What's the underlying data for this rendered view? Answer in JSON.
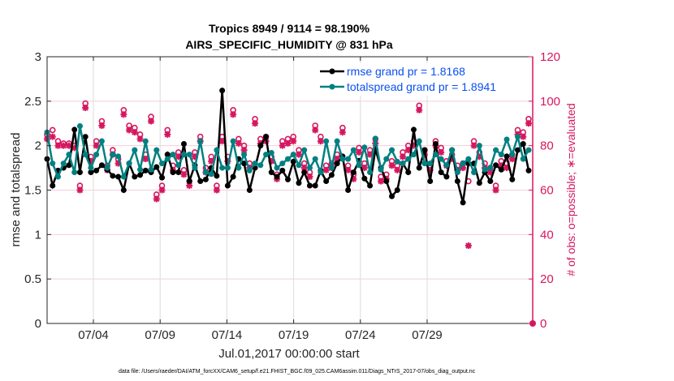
{
  "chart_data": {
    "type": "line",
    "title": "Tropics 8949 / 9114 = 98.190%",
    "subtitle": "AIRS_SPECIFIC_HUMIDITY @ 831 hPa",
    "xlabel": "Jul.01,2017 00:00:00 start",
    "ylabel": "rmse and totalspread",
    "y2label": "# of obs: o=possible; ∗=evaluated",
    "footnote": "data file: /Users/raeder/DAI/ATM_forcXX/CAM6_setup/f.e21.FHIST_BGC.f09_025.CAM6assim.011/Diags_NTrS_2017-07/obs_diag_output.nc",
    "x_ticks": [
      "07/04",
      "07/09",
      "07/14",
      "07/19",
      "07/24",
      "07/29"
    ],
    "ylim": [
      0,
      3
    ],
    "y_ticks": [
      "0",
      "0.5",
      "1",
      "1.5",
      "2",
      "2.5",
      "3"
    ],
    "y2lim": [
      0,
      120
    ],
    "y2_ticks": [
      "0",
      "20",
      "40",
      "60",
      "80",
      "100",
      "120"
    ],
    "grid": true,
    "legend_position": "top-right",
    "colors": {
      "rmse": "#000000",
      "totalspread": "#008080",
      "obs": "#d6175f",
      "legend_text": "#0a50f0"
    },
    "series": [
      {
        "name": "rmse grand pr = 1.8168",
        "axis": "left",
        "values": [
          1.85,
          1.55,
          1.72,
          1.75,
          1.78,
          2.18,
          1.7,
          2.1,
          1.7,
          1.72,
          1.78,
          1.73,
          1.66,
          1.65,
          1.5,
          1.8,
          1.65,
          1.67,
          1.72,
          1.7,
          1.76,
          1.64,
          1.9,
          1.7,
          1.7,
          2.02,
          1.6,
          1.78,
          1.6,
          1.62,
          1.75,
          1.66,
          2.62,
          1.55,
          1.65,
          1.85,
          1.8,
          1.5,
          1.75,
          2.0,
          2.1,
          1.7,
          1.65,
          1.72,
          1.62,
          1.82,
          1.58,
          1.7,
          1.55,
          1.55,
          1.72,
          1.6,
          1.67,
          1.8,
          1.88,
          1.5,
          1.7,
          1.83,
          1.63,
          1.55,
          1.96,
          1.75,
          1.6,
          1.43,
          1.5,
          1.8,
          1.7,
          2.18,
          1.75,
          1.95,
          1.6,
          2.02,
          1.7,
          1.65,
          1.95,
          1.6,
          1.36,
          1.8,
          1.8,
          1.58,
          1.7,
          1.6,
          1.78,
          1.73,
          1.88,
          1.62,
          1.95,
          2.02,
          1.72
        ]
      },
      {
        "name": "totalspread grand pr = 1.8941",
        "axis": "left",
        "values": [
          2.15,
          1.8,
          1.65,
          1.8,
          1.9,
          1.7,
          2.22,
          1.9,
          1.75,
          1.9,
          2.05,
          1.75,
          1.9,
          1.88,
          1.65,
          1.8,
          1.95,
          1.73,
          2.05,
          1.73,
          1.95,
          1.8,
          1.85,
          1.9,
          1.78,
          1.9,
          1.9,
          1.75,
          2.05,
          1.7,
          1.68,
          1.95,
          1.75,
          1.75,
          2.05,
          1.75,
          1.9,
          1.72,
          1.8,
          1.78,
          1.9,
          1.92,
          1.75,
          1.8,
          1.85,
          1.9,
          1.78,
          1.95,
          1.75,
          1.85,
          1.7,
          2.05,
          1.75,
          2.05,
          1.85,
          1.85,
          1.95,
          1.78,
          1.98,
          1.7,
          2.08,
          1.73,
          1.85,
          1.95,
          1.82,
          1.8,
          1.85,
          1.9,
          2.05,
          1.8,
          1.8,
          1.9,
          1.85,
          1.78,
          1.95,
          1.7,
          1.8,
          1.85,
          1.7,
          2.0,
          1.73,
          1.75,
          1.95,
          1.9,
          2.07,
          1.9,
          2.1,
          1.85,
          1.95
        ]
      },
      {
        "name": "obs possible",
        "axis": "right",
        "marker": "o",
        "values": [
          85,
          87,
          82,
          81,
          81,
          80,
          62,
          99,
          75,
          82,
          91,
          71,
          78,
          74,
          96,
          89,
          88,
          85,
          76,
          93,
          58,
          62,
          87,
          71,
          77,
          69,
          64,
          77,
          84,
          70,
          75,
          62,
          84,
          75,
          96,
          83,
          80,
          72,
          92,
          83,
          84,
          75,
          67,
          82,
          83,
          84,
          78,
          72,
          68,
          89,
          84,
          71,
          72,
          76,
          88,
          71,
          67,
          79,
          72,
          78,
          83,
          66,
          67,
          73,
          71,
          77,
          80,
          82,
          98,
          78,
          71,
          82,
          79,
          73,
          76,
          71,
          72,
          64,
          82,
          77,
          72,
          70,
          62,
          73,
          72,
          76,
          87,
          86,
          92
        ]
      },
      {
        "name": "obs evaluated",
        "axis": "right",
        "marker": "*",
        "values": [
          83,
          84,
          80,
          80,
          80,
          79,
          60,
          97,
          73,
          80,
          89,
          69,
          76,
          72,
          94,
          87,
          86,
          83,
          74,
          91,
          56,
          60,
          85,
          69,
          75,
          67,
          62,
          75,
          82,
          68,
          73,
          60,
          82,
          73,
          94,
          81,
          78,
          70,
          90,
          81,
          82,
          73,
          65,
          80,
          81,
          82,
          76,
          70,
          66,
          87,
          82,
          69,
          70,
          74,
          86,
          69,
          65,
          77,
          70,
          76,
          81,
          64,
          65,
          71,
          69,
          75,
          78,
          80,
          96,
          76,
          69,
          80,
          77,
          71,
          74,
          69,
          70,
          35,
          80,
          75,
          70,
          68,
          60,
          71,
          70,
          74,
          85,
          84,
          90
        ]
      }
    ]
  }
}
